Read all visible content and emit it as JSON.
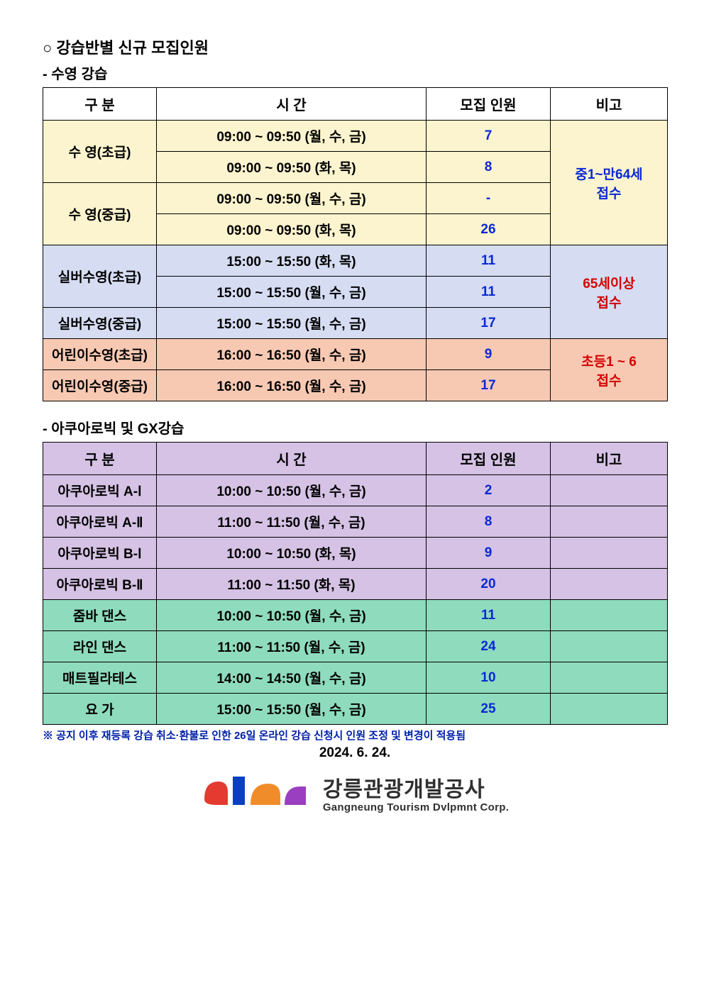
{
  "headings": {
    "section": "○ 강습반별 신규 모집인원",
    "sub1": "- 수영 강습",
    "sub2": "- 아쿠아로빅 및 GX강습"
  },
  "table_header": {
    "col1": "구 분",
    "col2": "시  간",
    "col3": "모집 인원",
    "col4": "비고"
  },
  "swim": {
    "header_bg": "#ffffff",
    "groups": [
      {
        "label": "수     영(초급)",
        "bg": "#fcf4ce",
        "rows": [
          {
            "time": "09:00 ~ 09:50 (월, 수, 금)",
            "count": "7"
          },
          {
            "time": "09:00 ~ 09:50 (화, 목)",
            "count": "8"
          }
        ]
      },
      {
        "label": "수     영(중급)",
        "bg": "#fcf4ce",
        "rows": [
          {
            "time": "09:00 ~ 09:50 (월, 수, 금)",
            "count": "-"
          },
          {
            "time": "09:00 ~ 09:50 (화, 목)",
            "count": "26"
          }
        ]
      },
      {
        "label": "실버수영(초급)",
        "bg": "#d6dcf2",
        "rows": [
          {
            "time": "15:00 ~ 15:50 (화, 목)",
            "count": "11"
          },
          {
            "time": "15:00 ~ 15:50 (월, 수, 금)",
            "count": "11"
          }
        ]
      },
      {
        "label": "실버수영(중급)",
        "bg": "#d6dcf2",
        "rows": [
          {
            "time": "15:00 ~ 15:50 (월, 수, 금)",
            "count": "17"
          }
        ]
      },
      {
        "label": "어린이수영(초급)",
        "bg": "#f7c9b3",
        "rows": [
          {
            "time": "16:00 ~ 16:50 (월, 수, 금)",
            "count": "9"
          }
        ]
      },
      {
        "label": "어린이수영(중급)",
        "bg": "#f7c9b3",
        "rows": [
          {
            "time": "16:00 ~ 16:50 (월, 수, 금)",
            "count": "17"
          }
        ]
      }
    ],
    "remarks": [
      {
        "text_l1": "중1~만64세",
        "text_l2": "접수",
        "bg": "#fcf4ce",
        "rowspan": 4,
        "cls": "remark-blue"
      },
      {
        "text_l1": "65세이상",
        "text_l2": "접수",
        "bg": "#d6dcf2",
        "rowspan": 3,
        "cls": "remark-red"
      },
      {
        "text_l1": "초등1 ~ 6",
        "text_l2": "접수",
        "bg": "#f7c9b3",
        "rowspan": 2,
        "cls": "remark-red"
      }
    ]
  },
  "gx": {
    "header_bg": "#d5c2e4",
    "rows": [
      {
        "label": "아쿠아로빅 A-Ⅰ",
        "time": "10:00 ~ 10:50 (월, 수, 금)",
        "count": "2",
        "bg": "#d5c2e4"
      },
      {
        "label": "아쿠아로빅 A-Ⅱ",
        "time": "11:00 ~ 11:50 (월, 수, 금)",
        "count": "8",
        "bg": "#d5c2e4"
      },
      {
        "label": "아쿠아로빅 B-Ⅰ",
        "time": "10:00 ~ 10:50 (화, 목)",
        "count": "9",
        "bg": "#d5c2e4"
      },
      {
        "label": "아쿠아로빅 B-Ⅱ",
        "time": "11:00 ~ 11:50 (화, 목)",
        "count": "20",
        "bg": "#d5c2e4"
      },
      {
        "label": "줌바 댄스",
        "time": "10:00 ~ 10:50 (월, 수, 금)",
        "count": "11",
        "bg": "#8fdbbd"
      },
      {
        "label": "라인 댄스",
        "time": "11:00 ~ 11:50 (월, 수, 금)",
        "count": "24",
        "bg": "#8fdbbd"
      },
      {
        "label": "매트필라테스",
        "time": "14:00 ~ 14:50 (월, 수, 금)",
        "count": "10",
        "bg": "#8fdbbd"
      },
      {
        "label": "요     가",
        "time": "15:00 ~ 15:50 (월, 수, 금)",
        "count": "25",
        "bg": "#8fdbbd"
      }
    ]
  },
  "footnote": "※ 공지 이후 재등록 강습 취소·환불로 인한 26일 온라인 강습 신청시 인원 조정 및 변경이 적용됨",
  "date": "2024. 6. 24.",
  "org": {
    "ko": "강릉관광개발공사",
    "en": "Gangneung Tourism Dvlpmnt Corp.",
    "logo_colors": [
      "#e53a2f",
      "#0a3fbf",
      "#f08d2a",
      "#9a3fbf"
    ]
  }
}
